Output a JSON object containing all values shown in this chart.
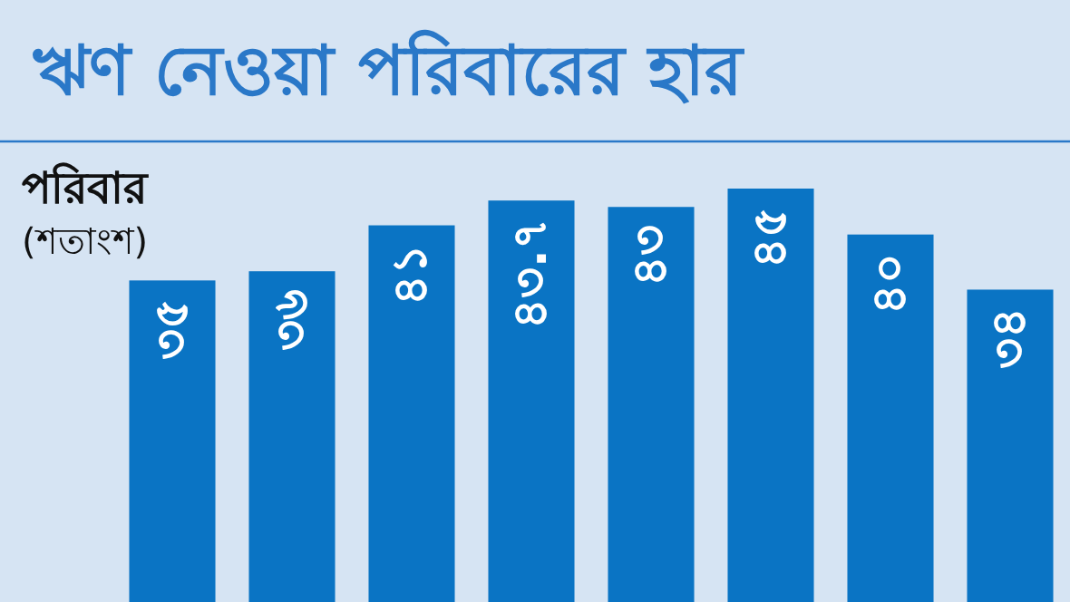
{
  "chart_data": {
    "type": "bar",
    "title": "ঋণ নেওয়া পরিবারের হার",
    "ylabel": "পরিবার (শতাংশ)",
    "categories": [
      null,
      null,
      null,
      null,
      null,
      null,
      null,
      null
    ],
    "values": [
      35,
      36,
      41,
      43.7,
      43,
      45,
      40,
      34
    ],
    "value_labels": [
      "৩৫",
      "৩৬",
      "৪১",
      "৪৩.৭",
      "৪৩",
      "৪৫",
      "৪০",
      "৩৪"
    ],
    "color": "#0a74c4"
  }
}
